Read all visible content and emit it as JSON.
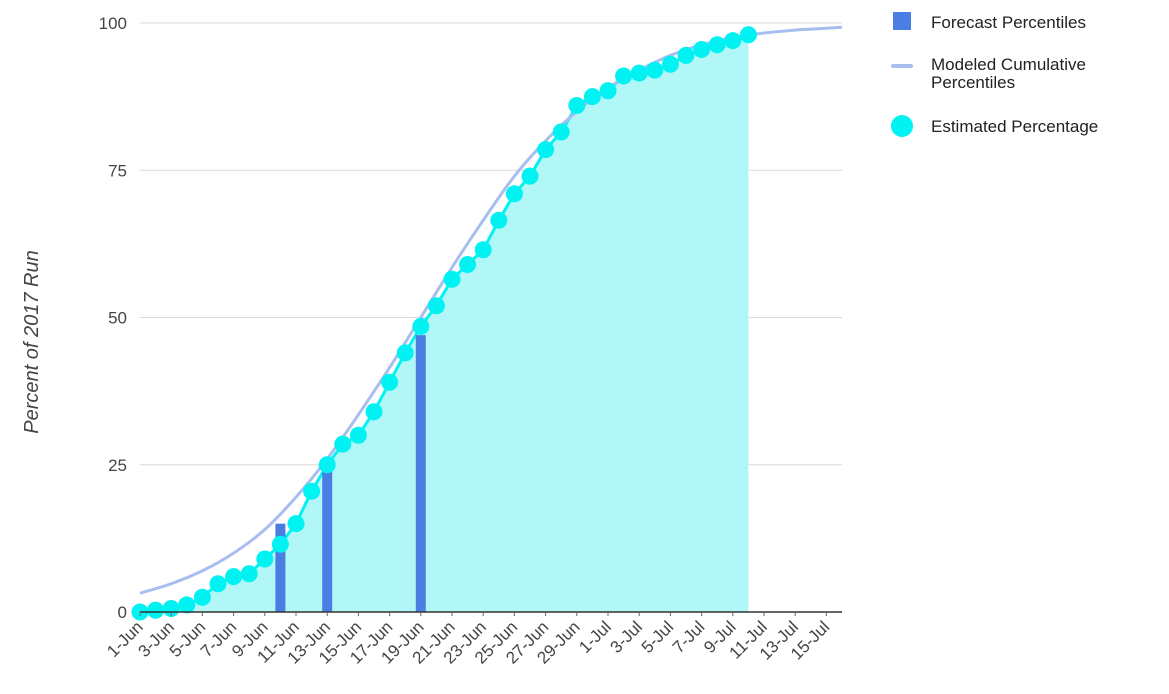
{
  "chart_data": {
    "type": "line",
    "title": "",
    "xlabel": "",
    "ylabel": "Percent of 2017 Run",
    "ylim": [
      0,
      100
    ],
    "yticks": [
      0,
      25,
      50,
      75,
      100
    ],
    "x_range": [
      "1-Jun",
      "16-Jul"
    ],
    "x_tick_labels": [
      "1-Jun",
      "3-Jun",
      "5-Jun",
      "7-Jun",
      "9-Jun",
      "11-Jun",
      "13-Jun",
      "15-Jun",
      "17-Jun",
      "19-Jun",
      "21-Jun",
      "23-Jun",
      "25-Jun",
      "27-Jun",
      "29-Jun",
      "1-Jul",
      "3-Jul",
      "5-Jul",
      "7-Jul",
      "9-Jul",
      "11-Jul",
      "13-Jul",
      "15-Jul"
    ],
    "grid": true,
    "legend_position": "right",
    "series": [
      {
        "name": "Forecast Percentiles",
        "kind": "bar",
        "color": "#4a7ee2",
        "points": [
          {
            "x": "10-Jun",
            "y": 15
          },
          {
            "x": "13-Jun",
            "y": 25
          },
          {
            "x": "19-Jun",
            "y": 47
          }
        ]
      },
      {
        "name": "Modeled Cumulative Percentiles",
        "kind": "line",
        "color": "#a8bdf0",
        "x": [
          "1-Jun",
          "3-Jun",
          "5-Jun",
          "7-Jun",
          "9-Jun",
          "11-Jun",
          "13-Jun",
          "15-Jun",
          "17-Jun",
          "19-Jun",
          "21-Jun",
          "23-Jun",
          "25-Jun",
          "27-Jun",
          "29-Jun",
          "1-Jul",
          "3-Jul",
          "5-Jul",
          "7-Jul",
          "9-Jul",
          "11-Jul",
          "13-Jul",
          "15-Jul",
          "16-Jul"
        ],
        "y": [
          3.2,
          4.8,
          7.0,
          10.0,
          14.0,
          19.5,
          26.0,
          33.5,
          41.5,
          50.0,
          58.5,
          66.5,
          74.0,
          80.0,
          85.0,
          89.0,
          92.0,
          94.5,
          96.3,
          97.5,
          98.3,
          98.8,
          99.1,
          99.3
        ]
      },
      {
        "name": "Estimated Percentage",
        "kind": "area_points",
        "color": "#00f2f2",
        "fill": "#b2f7f7",
        "x": [
          "1-Jun",
          "2-Jun",
          "3-Jun",
          "4-Jun",
          "5-Jun",
          "6-Jun",
          "7-Jun",
          "8-Jun",
          "9-Jun",
          "10-Jun",
          "11-Jun",
          "12-Jun",
          "13-Jun",
          "14-Jun",
          "15-Jun",
          "16-Jun",
          "17-Jun",
          "18-Jun",
          "19-Jun",
          "20-Jun",
          "21-Jun",
          "22-Jun",
          "23-Jun",
          "24-Jun",
          "25-Jun",
          "26-Jun",
          "27-Jun",
          "28-Jun",
          "29-Jun",
          "30-Jun",
          "1-Jul",
          "2-Jul",
          "3-Jul",
          "4-Jul",
          "5-Jul",
          "6-Jul",
          "7-Jul",
          "8-Jul",
          "9-Jul",
          "10-Jul"
        ],
        "y": [
          0,
          0.3,
          0.6,
          1.2,
          2.5,
          4.8,
          6,
          6.5,
          9,
          11.5,
          15,
          20.5,
          25,
          28.5,
          30,
          34,
          39,
          44,
          48.5,
          52,
          56.5,
          59,
          61.5,
          66.5,
          71,
          74,
          78.5,
          81.5,
          86,
          87.5,
          88.5,
          91,
          91.5,
          92,
          93,
          94.5,
          95.5,
          96.3,
          97,
          98
        ]
      }
    ]
  }
}
